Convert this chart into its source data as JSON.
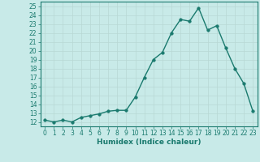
{
  "x": [
    0,
    1,
    2,
    3,
    4,
    5,
    6,
    7,
    8,
    9,
    10,
    11,
    12,
    13,
    14,
    15,
    16,
    17,
    18,
    19,
    20,
    21,
    22,
    23
  ],
  "y": [
    12.2,
    12.0,
    12.2,
    12.0,
    12.5,
    12.7,
    12.9,
    13.2,
    13.3,
    13.3,
    14.8,
    17.0,
    19.0,
    19.8,
    22.0,
    23.5,
    23.3,
    24.8,
    22.3,
    22.8,
    20.3,
    18.0,
    16.3,
    13.2
  ],
  "xlabel": "Humidex (Indice chaleur)",
  "ylim": [
    11.5,
    25.5
  ],
  "xlim": [
    -0.5,
    23.5
  ],
  "yticks": [
    12,
    13,
    14,
    15,
    16,
    17,
    18,
    19,
    20,
    21,
    22,
    23,
    24,
    25
  ],
  "xticks": [
    0,
    1,
    2,
    3,
    4,
    5,
    6,
    7,
    8,
    9,
    10,
    11,
    12,
    13,
    14,
    15,
    16,
    17,
    18,
    19,
    20,
    21,
    22,
    23
  ],
  "line_color": "#1a7a6e",
  "bg_color": "#c8eae8",
  "grid_color": "#b8d8d4",
  "marker_size": 2.5,
  "line_width": 1.0,
  "tick_fontsize": 5.5,
  "xlabel_fontsize": 6.5
}
